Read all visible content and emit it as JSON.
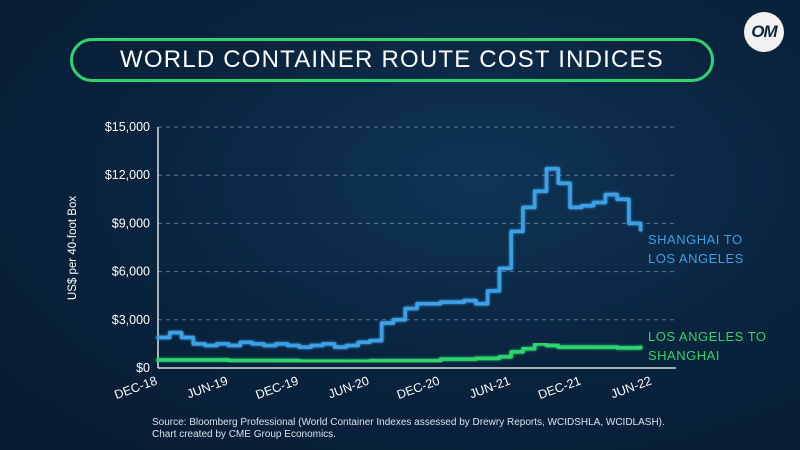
{
  "logo_text": "OM",
  "source_line1": "Source: Bloomberg Professional (World Container Indexes assessed by Drewry Reports, WCIDSHLA, WCIDLASH).",
  "source_line2": "Chart created by CME Group Economics.",
  "colors": {
    "shanghai_to_la": "#3aa0e6",
    "la_to_shanghai": "#2fd56c",
    "title_border": "#2fd56c",
    "background": "#0a2540"
  },
  "chart_data": {
    "type": "line",
    "title": "WORLD CONTAINER ROUTE COST INDICES",
    "ylabel": "US$ per 40-foot Box",
    "ylim": [
      0,
      15000
    ],
    "yticks": [
      {
        "value": 0,
        "label": "$0"
      },
      {
        "value": 3000,
        "label": "$3,000"
      },
      {
        "value": 6000,
        "label": "$6,000"
      },
      {
        "value": 9000,
        "label": "$9,000"
      },
      {
        "value": 12000,
        "label": "$12,000"
      },
      {
        "value": 15000,
        "label": "$15,000"
      }
    ],
    "xlim": [
      "2018-12",
      "2022-08"
    ],
    "xticks": [
      {
        "value": "2018-12",
        "label": "DEC-18"
      },
      {
        "value": "2019-06",
        "label": "JUN-19"
      },
      {
        "value": "2019-12",
        "label": "DEC-19"
      },
      {
        "value": "2020-06",
        "label": "JUN-20"
      },
      {
        "value": "2020-12",
        "label": "DEC-20"
      },
      {
        "value": "2021-06",
        "label": "JUN-21"
      },
      {
        "value": "2021-12",
        "label": "DEC-21"
      },
      {
        "value": "2022-06",
        "label": "JUN-22"
      }
    ],
    "grid": "horizontal dashed",
    "series": [
      {
        "name": "SHANGHAI TO LOS ANGELES",
        "color": "#3aa0e6",
        "points": [
          [
            "2018-12",
            1900
          ],
          [
            "2019-01",
            2200
          ],
          [
            "2019-02",
            1900
          ],
          [
            "2019-03",
            1500
          ],
          [
            "2019-04",
            1400
          ],
          [
            "2019-05",
            1500
          ],
          [
            "2019-06",
            1400
          ],
          [
            "2019-07",
            1600
          ],
          [
            "2019-08",
            1500
          ],
          [
            "2019-09",
            1400
          ],
          [
            "2019-10",
            1500
          ],
          [
            "2019-11",
            1400
          ],
          [
            "2019-12",
            1300
          ],
          [
            "2020-01",
            1400
          ],
          [
            "2020-02",
            1500
          ],
          [
            "2020-03",
            1300
          ],
          [
            "2020-04",
            1400
          ],
          [
            "2020-05",
            1600
          ],
          [
            "2020-06",
            1700
          ],
          [
            "2020-07",
            2800
          ],
          [
            "2020-08",
            3000
          ],
          [
            "2020-09",
            3700
          ],
          [
            "2020-10",
            4000
          ],
          [
            "2020-11",
            4000
          ],
          [
            "2020-12",
            4100
          ],
          [
            "2021-01",
            4100
          ],
          [
            "2021-02",
            4200
          ],
          [
            "2021-03",
            4000
          ],
          [
            "2021-04",
            4800
          ],
          [
            "2021-05",
            6200
          ],
          [
            "2021-06",
            8500
          ],
          [
            "2021-07",
            10000
          ],
          [
            "2021-08",
            11000
          ],
          [
            "2021-09",
            12400
          ],
          [
            "2021-10",
            11500
          ],
          [
            "2021-11",
            10000
          ],
          [
            "2021-12",
            10100
          ],
          [
            "2022-01",
            10300
          ],
          [
            "2022-02",
            10800
          ],
          [
            "2022-03",
            10500
          ],
          [
            "2022-04",
            9000
          ],
          [
            "2022-05",
            8600
          ]
        ]
      },
      {
        "name": "LOS ANGELES TO SHANGHAI",
        "color": "#2fd56c",
        "points": [
          [
            "2018-12",
            500
          ],
          [
            "2019-06",
            460
          ],
          [
            "2019-12",
            420
          ],
          [
            "2020-06",
            450
          ],
          [
            "2020-12",
            550
          ],
          [
            "2021-03",
            600
          ],
          [
            "2021-05",
            700
          ],
          [
            "2021-06",
            1000
          ],
          [
            "2021-07",
            1200
          ],
          [
            "2021-08",
            1500
          ],
          [
            "2021-09",
            1400
          ],
          [
            "2021-10",
            1300
          ],
          [
            "2021-12",
            1300
          ],
          [
            "2022-03",
            1250
          ],
          [
            "2022-05",
            1300
          ]
        ]
      }
    ]
  }
}
